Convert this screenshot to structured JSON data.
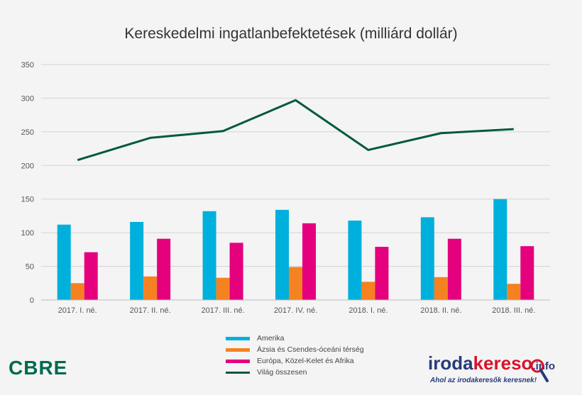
{
  "chart_data": {
    "type": "bar",
    "title": "Kereskedelmi ingatlanbefektetések (milliárd dollár)",
    "categories": [
      "2017. I. né.",
      "2017. II. né.",
      "2017. III. né.",
      "2017. IV. né.",
      "2018. I. né.",
      "2018. II. né.",
      "2018. III. né."
    ],
    "ylim": [
      0,
      350
    ],
    "yticks": [
      0,
      50,
      100,
      150,
      200,
      250,
      300,
      350
    ],
    "grid": true,
    "legend_position": "bottom",
    "series": [
      {
        "name": "Amerika",
        "kind": "bar",
        "color": "#00b0dc",
        "values": [
          112,
          116,
          132,
          134,
          118,
          123,
          150
        ]
      },
      {
        "name": "Ázsia és Csendes-óceáni térség",
        "kind": "bar",
        "color": "#f58220",
        "values": [
          25,
          35,
          33,
          49,
          27,
          34,
          24
        ]
      },
      {
        "name": "Európa, Közel-Kelet és Afrika",
        "kind": "bar",
        "color": "#e5007e",
        "values": [
          71,
          91,
          85,
          114,
          79,
          91,
          80
        ]
      },
      {
        "name": "Világ összesen",
        "kind": "line",
        "color": "#005a3c",
        "values": [
          208,
          241,
          251,
          297,
          223,
          248,
          254
        ]
      }
    ]
  },
  "logos": {
    "cbre": {
      "text": "CBRE",
      "color": "#006a4d"
    },
    "irodakereso": {
      "part1": "iroda",
      "part2": "keres",
      "part3": "o",
      "tld": ".info",
      "tagline": "Ahol az irodakeresők keresnek!"
    }
  }
}
